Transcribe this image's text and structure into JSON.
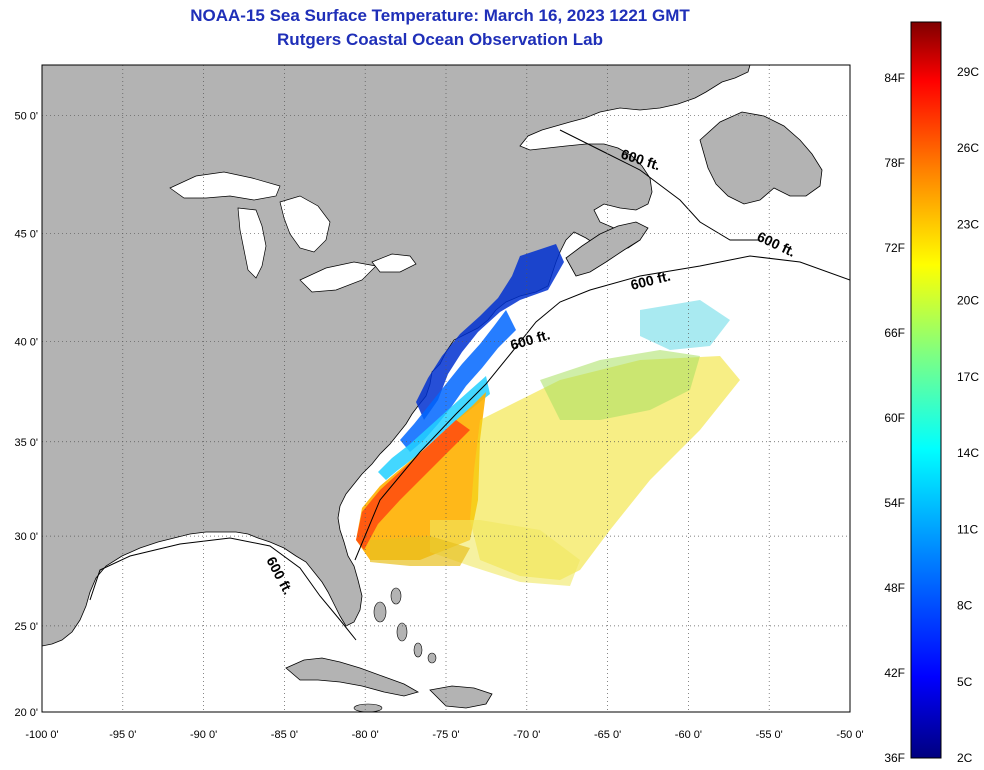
{
  "title_line1": "NOAA-15 Sea Surface Temperature:  March 16, 2023 1221 GMT",
  "title_line2": "Rutgers Coastal Ocean Observation Lab",
  "map": {
    "lon_range": [
      -100,
      -50
    ],
    "lat_range": [
      20,
      52
    ],
    "lon_ticks": [
      "-100 0'",
      "-95 0'",
      "-90 0'",
      "-85 0'",
      "-80 0'",
      "-75 0'",
      "-70 0'",
      "-65 0'",
      "-60 0'",
      "-55 0'",
      "-50 0'"
    ],
    "lat_ticks": [
      "20 0'",
      "25 0'",
      "30 0'",
      "35 0'",
      "40 0'",
      "45 0'",
      "50 0'"
    ],
    "land_color": "#b3b3b3",
    "ocean_color": "#ffffff",
    "contour_labels": [
      "600 ft.",
      "600 ft.",
      "600 ft.",
      "600 ft.",
      "600 ft."
    ]
  },
  "colorbar": {
    "fahrenheit_labels": [
      "84F",
      "78F",
      "72F",
      "66F",
      "60F",
      "54F",
      "48F",
      "42F",
      "36F"
    ],
    "celsius_labels": [
      "29C",
      "26C",
      "23C",
      "20C",
      "17C",
      "14C",
      "11C",
      "8C",
      "5C",
      "2C"
    ],
    "colors": [
      "#00007f",
      "#0000ff",
      "#0080ff",
      "#00ffff",
      "#80ff80",
      "#ffff00",
      "#ff8000",
      "#ff0000",
      "#7f0000"
    ]
  }
}
